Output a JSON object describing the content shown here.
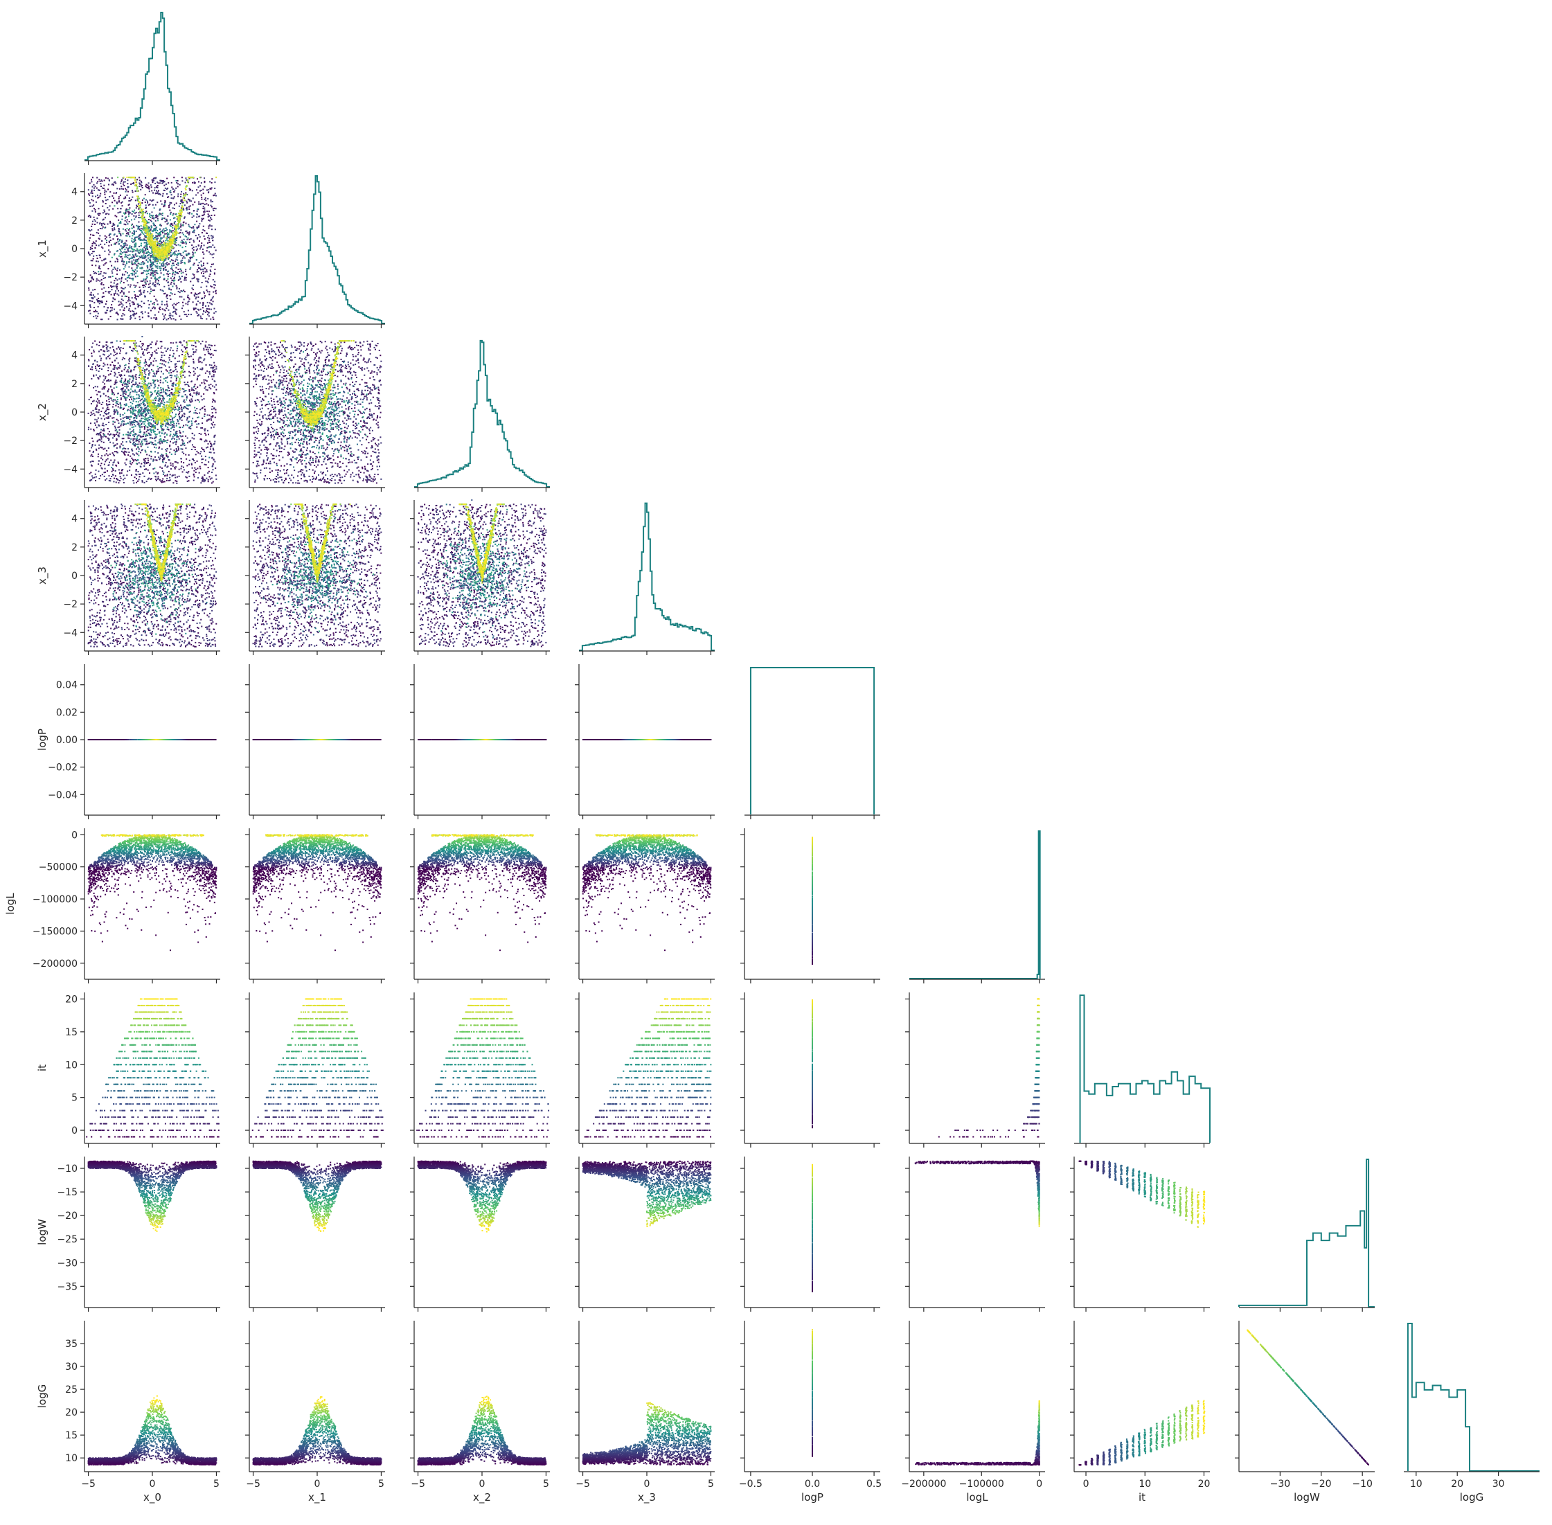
{
  "chart_data": {
    "type": "scatter",
    "layout": "corner-pairplot",
    "grid": false,
    "diagonal": "step-histogram",
    "colormap": "viridis",
    "colormap_stops": [
      "#440154",
      "#3b528b",
      "#21918c",
      "#5ec962",
      "#fde725"
    ],
    "hist_color": "#1a8080",
    "axis_color": "#262626",
    "variables": [
      "x_0",
      "x_1",
      "x_2",
      "x_3",
      "logP",
      "logL",
      "it",
      "logW",
      "logG"
    ],
    "axes": {
      "x_0": {
        "label": "x_0",
        "lim": [
          -5.3,
          5.3
        ],
        "ticks": [
          -5,
          0,
          5
        ],
        "tick_labels": [
          "−5",
          "0",
          "5"
        ]
      },
      "x_1": {
        "label": "x_1",
        "lim": [
          -5.3,
          5.3
        ],
        "ticks": [
          -4,
          -2,
          0,
          2,
          4
        ],
        "tick_labels": [
          "−4",
          "−2",
          "0",
          "2",
          "4"
        ],
        "x_ticks": [
          -5,
          0,
          5
        ],
        "x_tick_labels": [
          "−5",
          "0",
          "5"
        ]
      },
      "x_2": {
        "label": "x_2",
        "lim": [
          -5.3,
          5.3
        ],
        "ticks": [
          -4,
          -2,
          0,
          2,
          4
        ],
        "tick_labels": [
          "−4",
          "−2",
          "0",
          "2",
          "4"
        ],
        "x_ticks": [
          -5,
          0,
          5
        ],
        "x_tick_labels": [
          "−5",
          "0",
          "5"
        ]
      },
      "x_3": {
        "label": "x_3",
        "lim": [
          -5.3,
          5.3
        ],
        "ticks": [
          -4,
          -2,
          0,
          2,
          4
        ],
        "tick_labels": [
          "−4",
          "−2",
          "0",
          "2",
          "4"
        ],
        "x_ticks": [
          -5,
          0,
          5
        ],
        "x_tick_labels": [
          "−5",
          "0",
          "5"
        ]
      },
      "logP": {
        "label": "logP",
        "lim": [
          -0.055,
          0.055
        ],
        "ticks": [
          -0.04,
          -0.02,
          0.0,
          0.02,
          0.04
        ],
        "tick_labels": [
          "−0.04",
          "−0.02",
          "0.00",
          "0.02",
          "0.04"
        ],
        "x_lim": [
          -0.55,
          0.55
        ],
        "x_ticks": [
          -0.5,
          0.0,
          0.5
        ],
        "x_tick_labels": [
          "−0.5",
          "0.0",
          "0.5"
        ]
      },
      "logL": {
        "label": "logL",
        "lim": [
          -225000,
          10000
        ],
        "ticks": [
          0,
          -50000,
          -100000,
          -150000,
          -200000
        ],
        "tick_labels": [
          "0",
          "−50000",
          "−100000",
          "−150000",
          "−200000"
        ],
        "x_ticks": [
          -200000,
          -100000,
          0
        ],
        "x_tick_labels": [
          "−200000",
          "−100000",
          "0"
        ]
      },
      "it": {
        "label": "it",
        "lim": [
          -2,
          21
        ],
        "ticks": [
          0,
          5,
          10,
          15,
          20
        ],
        "tick_labels": [
          "0",
          "5",
          "10",
          "15",
          "20"
        ],
        "x_ticks": [
          0,
          10,
          20
        ],
        "x_tick_labels": [
          "0",
          "10",
          "20"
        ]
      },
      "logW": {
        "label": "logW",
        "lim": [
          -39.5,
          -7.5
        ],
        "ticks": [
          -10,
          -15,
          -20,
          -25,
          -30,
          -35
        ],
        "tick_labels": [
          "−10",
          "−15",
          "−20",
          "−25",
          "−30",
          "−35"
        ],
        "x_lim": [
          -40,
          -7
        ],
        "x_ticks": [
          -30,
          -20,
          -10
        ],
        "x_tick_labels": [
          "−30",
          "−20",
          "−10"
        ]
      },
      "logG": {
        "label": "logG",
        "lim": [
          7,
          40
        ],
        "ticks": [
          10,
          15,
          20,
          25,
          30,
          35
        ],
        "tick_labels": [
          "10",
          "15",
          "20",
          "25",
          "30",
          "35"
        ],
        "x_ticks": [
          10,
          20,
          30
        ],
        "x_tick_labels": [
          "10",
          "20",
          "30"
        ]
      }
    },
    "histograms": {
      "x_0": {
        "peak_at": 0.8,
        "shape": "peaked",
        "density_at": [
          [
            -5,
            0.02
          ],
          [
            -3,
            0.06
          ],
          [
            -1,
            0.3
          ],
          [
            0,
            0.75
          ],
          [
            0.5,
            0.9
          ],
          [
            0.8,
            1.0
          ],
          [
            1.2,
            0.55
          ],
          [
            2,
            0.12
          ],
          [
            3.5,
            0.04
          ],
          [
            5,
            0.02
          ]
        ]
      },
      "x_1": {
        "peak_at": 0.0,
        "shape": "peaked",
        "density_at": [
          [
            -5,
            0.02
          ],
          [
            -3,
            0.06
          ],
          [
            -1,
            0.18
          ],
          [
            0,
            1.0
          ],
          [
            0.5,
            0.6
          ],
          [
            1.5,
            0.35
          ],
          [
            2.5,
            0.12
          ],
          [
            4,
            0.04
          ],
          [
            5,
            0.02
          ]
        ]
      },
      "x_2": {
        "peak_at": 0.0,
        "shape": "peaked",
        "density_at": [
          [
            -5,
            0.02
          ],
          [
            -3,
            0.06
          ],
          [
            -1,
            0.15
          ],
          [
            0,
            1.0
          ],
          [
            0.5,
            0.6
          ],
          [
            1.5,
            0.4
          ],
          [
            2.5,
            0.15
          ],
          [
            4,
            0.04
          ],
          [
            5,
            0.02
          ]
        ]
      },
      "x_3": {
        "peak_at": 0.0,
        "shape": "peaked",
        "density_at": [
          [
            -5,
            0.03
          ],
          [
            -3,
            0.06
          ],
          [
            -1,
            0.1
          ],
          [
            0,
            1.0
          ],
          [
            0.5,
            0.32
          ],
          [
            2,
            0.18
          ],
          [
            4,
            0.14
          ],
          [
            5,
            0.1
          ]
        ]
      },
      "logP": {
        "shape": "single-bin",
        "bin": [
          -0.5,
          0.5
        ]
      },
      "logL": {
        "shape": "spike-at-zero"
      },
      "it": {
        "bin_heights": [
          [
            -1,
            1.0
          ],
          [
            -0.3,
            0.35
          ],
          [
            0.5,
            0.33
          ],
          [
            1.5,
            0.4
          ],
          [
            2.5,
            0.4
          ],
          [
            3.5,
            0.32
          ],
          [
            4.5,
            0.38
          ],
          [
            5.5,
            0.4
          ],
          [
            6.5,
            0.4
          ],
          [
            7.5,
            0.33
          ],
          [
            8.5,
            0.4
          ],
          [
            9.5,
            0.42
          ],
          [
            10.5,
            0.4
          ],
          [
            11.5,
            0.33
          ],
          [
            12.5,
            0.42
          ],
          [
            13.5,
            0.4
          ],
          [
            14.5,
            0.48
          ],
          [
            15.5,
            0.42
          ],
          [
            16.5,
            0.33
          ],
          [
            17.5,
            0.45
          ],
          [
            18.5,
            0.4
          ],
          [
            19.5,
            0.37
          ]
        ]
      },
      "logW": {
        "bin_heights": [
          [
            -40,
            0.01
          ],
          [
            -24,
            0.01
          ],
          [
            -23.5,
            0.45
          ],
          [
            -22,
            0.5
          ],
          [
            -20,
            0.45
          ],
          [
            -18,
            0.5
          ],
          [
            -16,
            0.48
          ],
          [
            -14,
            0.55
          ],
          [
            -12,
            0.55
          ],
          [
            -10.5,
            0.65
          ],
          [
            -9.5,
            0.4
          ],
          [
            -9,
            1.0
          ],
          [
            -8.5,
            0.0
          ]
        ]
      },
      "logG": {
        "bin_heights": [
          [
            8,
            1.0
          ],
          [
            9,
            0.5
          ],
          [
            10,
            0.6
          ],
          [
            12,
            0.55
          ],
          [
            14,
            0.58
          ],
          [
            16,
            0.55
          ],
          [
            18,
            0.5
          ],
          [
            20,
            0.55
          ],
          [
            22,
            0.3
          ],
          [
            23,
            0.0
          ],
          [
            40,
            0.0
          ]
        ]
      }
    },
    "scatter_patterns": {
      "x_i_vs_x_j": "uniform purple points over [-5,5]^2 with dense yellow-green V/U-shaped ridge near the origin",
      "x_i_vs_logP": "all points on logP = 0 colored yellow near 0",
      "x_i_vs_logL": "inverted dome, max near logL = 0, sparse tail to about -200000",
      "x_i_vs_it": "horizontal stripes at integer it from -1 to 20, narrowing with it",
      "x_i_vs_logW": "flat band at logW = -8.5, yellow funnel down to about -22 near x = 0",
      "x_i_vs_logG": "flat band at logG = 8.5, yellow bump up to about 22 near x = 0",
      "logL_vs_it": "points concentrate near logL = 0 for higher it",
      "it_vs_logW": "columns at each integer it, descending with it",
      "logW_vs_logG": "straight diagonal line from (-38, 38) to (-8.5, 8.5)"
    }
  }
}
